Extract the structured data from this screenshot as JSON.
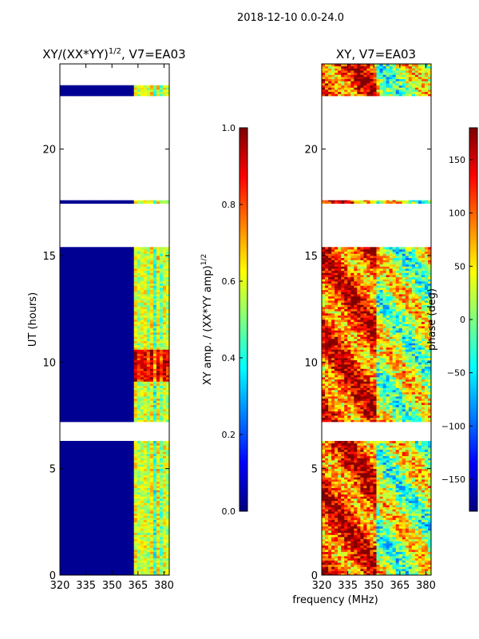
{
  "suptitle": "2018-12-10 0.0-24.0",
  "xlabel": "frequency (MHz)",
  "colormap": [
    "#00007f",
    "#0000ff",
    "#007fff",
    "#00ffff",
    "#7fff7f",
    "#ffff00",
    "#ff7f00",
    "#ff0000",
    "#7f0000"
  ],
  "chart_data": [
    {
      "type": "heatmap",
      "title_main": "XY/(XX*YY)",
      "title_sup": "1/2",
      "title_tail": ", V7=EA03",
      "ylabel": "UT (hours)",
      "xlim": [
        320,
        383
      ],
      "ylim": [
        0,
        24
      ],
      "xticks": [
        320,
        335,
        350,
        365,
        380
      ],
      "yticks": [
        0,
        5,
        10,
        15,
        20
      ],
      "data_segments": [
        [
          0,
          6.3
        ],
        [
          7.2,
          15.4
        ],
        [
          17.45,
          17.6
        ],
        [
          22.5,
          23.0
        ]
      ],
      "colorbar": {
        "label_main": "XY amp. / (XX*YY amp)",
        "label_sup": "1/2",
        "range": [
          0.0,
          1.0
        ],
        "ticks": [
          "0.0",
          "0.2",
          "0.4",
          "0.6",
          "0.8",
          "1.0"
        ]
      }
    },
    {
      "type": "heatmap",
      "title": "XY, V7=EA03",
      "xlim": [
        320,
        383
      ],
      "ylim": [
        0,
        24
      ],
      "xticks": [
        320,
        335,
        350,
        365,
        380
      ],
      "yticks": [
        0,
        5,
        10,
        15,
        20
      ],
      "data_segments": [
        [
          0,
          6.3
        ],
        [
          7.2,
          15.4
        ],
        [
          17.45,
          17.6
        ],
        [
          22.5,
          24.0
        ]
      ],
      "colorbar": {
        "label": "phase (deg)",
        "range": [
          -180,
          180
        ],
        "ticks": [
          "150",
          "100",
          "50",
          "0",
          "−50",
          "−100",
          "−150"
        ]
      }
    }
  ]
}
